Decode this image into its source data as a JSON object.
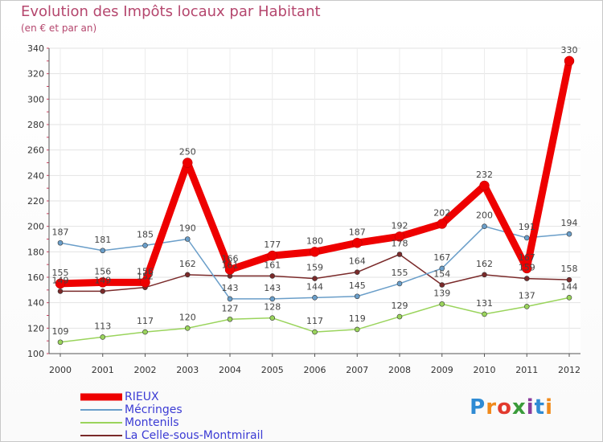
{
  "chart_data": {
    "type": "line",
    "title": "Evolution des Impôts locaux par Habitant",
    "subtitle": "(en € et par an)",
    "categories": [
      "2000",
      "2001",
      "2002",
      "2003",
      "2004",
      "2005",
      "2006",
      "2007",
      "2008",
      "2009",
      "2010",
      "2011",
      "2012"
    ],
    "ylim": [
      100,
      340
    ],
    "yticks": [
      100,
      120,
      140,
      160,
      180,
      200,
      220,
      240,
      260,
      280,
      300,
      320,
      340
    ],
    "series": [
      {
        "name": "RIEUX",
        "color": "#ee0000",
        "values": [
          155,
          156,
          156,
          250,
          166,
          177,
          180,
          187,
          192,
          202,
          232,
          167,
          330
        ]
      },
      {
        "name": "Mécringes",
        "color": "#6a9ec9",
        "values": [
          187,
          181,
          185,
          190,
          143,
          143,
          144,
          145,
          155,
          167,
          200,
          191,
          194
        ]
      },
      {
        "name": "Montenils",
        "color": "#9ad45c",
        "values": [
          109,
          113,
          117,
          120,
          127,
          128,
          117,
          119,
          129,
          139,
          131,
          137,
          144
        ]
      },
      {
        "name": "La Celle-sous-Montmirail",
        "color": "#7a2a2a",
        "values": [
          149,
          149,
          152,
          162,
          161,
          161,
          159,
          164,
          178,
          154,
          162,
          159,
          158
        ]
      }
    ],
    "data_labels": {
      "RIEUX": [
        "155",
        "156",
        "156",
        "250",
        "166",
        "177",
        "180",
        "187",
        "192",
        "202",
        "232",
        "167",
        "330"
      ],
      "Mécringes": [
        "187",
        "181",
        "185",
        "190",
        "143",
        "143",
        "144",
        "145",
        "155",
        "167",
        "200",
        "191",
        "194"
      ],
      "Montenils": [
        "109",
        "113",
        "117",
        "120",
        "127",
        "128",
        "117",
        "119",
        "129",
        "139",
        "131",
        "137",
        "144"
      ],
      "La Celle-sous-Montmirail": [
        "149",
        "149",
        "152",
        "162",
        "161",
        "161",
        "159",
        "164",
        "178",
        "154",
        "162",
        "159",
        "158"
      ]
    }
  },
  "legend": [
    {
      "label": "RIEUX",
      "color": "#ee0000",
      "text_color": "#3b3bd4"
    },
    {
      "label": "Mécringes",
      "color": "#6a9ec9",
      "text_color": "#3b3bd4"
    },
    {
      "label": "Montenils",
      "color": "#9ad45c",
      "text_color": "#3b3bd4"
    },
    {
      "label": "La Celle-sous-Montmirail",
      "color": "#7a2a2a",
      "text_color": "#3b3bd4"
    }
  ],
  "logo": {
    "p": "P",
    "r": "r",
    "o": "o",
    "x": "x",
    "i1": "i",
    "t": "t",
    "i2": "i"
  }
}
